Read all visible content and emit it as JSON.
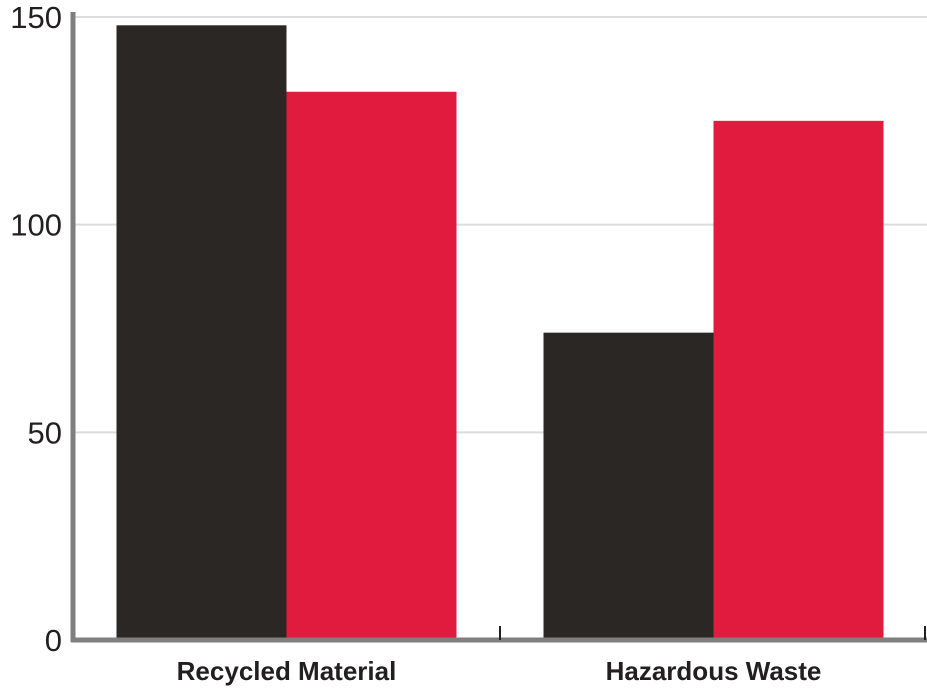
{
  "chart_data": {
    "type": "bar",
    "title": "",
    "xlabel": "",
    "ylabel": "",
    "categories": [
      "Recycled Material",
      "Hazardous Waste"
    ],
    "series": [
      {
        "color": "#2b2725",
        "values": [
          148,
          74
        ]
      },
      {
        "color": "#e11b3e",
        "values": [
          132,
          125
        ]
      }
    ],
    "ylim": [
      0,
      150
    ],
    "yticks": [
      0,
      50,
      100,
      150
    ],
    "grid": true,
    "legend": "none",
    "colors": {
      "axis": "#7f7f7f",
      "grid": "#dcdcdc",
      "text": "#231f20"
    }
  }
}
